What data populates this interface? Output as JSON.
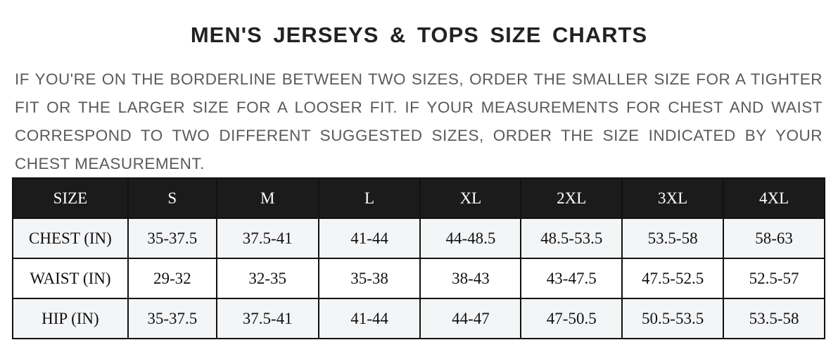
{
  "title": "MEN'S JERSEYS & TOPS SIZE CHARTS",
  "description": "IF YOU'RE ON THE BORDERLINE BETWEEN TWO SIZES, ORDER THE SMALLER SIZE FOR A TIGHTER FIT OR THE LARGER SIZE FOR A LOOSER FIT. IF YOUR MEASUREMENTS FOR CHEST AND WAIST CORRESPOND TO TWO DIFFERENT SUGGESTED SIZES, ORDER THE SIZE INDICATED BY YOUR CHEST MEASUREMENT.",
  "table": {
    "header": [
      "SIZE",
      "S",
      "M",
      "L",
      "XL",
      "2XL",
      "3XL",
      "4XL"
    ],
    "rows": [
      [
        "CHEST (IN)",
        "35-37.5",
        "37.5-41",
        "41-44",
        "44-48.5",
        "48.5-53.5",
        "53.5-58",
        "58-63"
      ],
      [
        "WAIST (IN)",
        "29-32",
        "32-35",
        "35-38",
        "38-43",
        "43-47.5",
        "47.5-52.5",
        "52.5-57"
      ],
      [
        "HIP (IN)",
        "35-37.5",
        "37.5-41",
        "41-44",
        "44-47",
        "47-50.5",
        "50.5-53.5",
        "53.5-58"
      ]
    ]
  }
}
